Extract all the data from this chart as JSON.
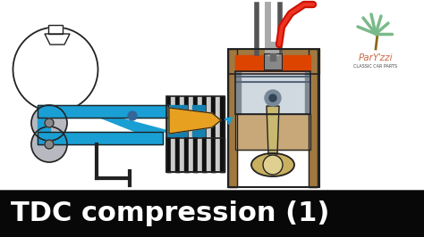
{
  "title": "TDC compression (1)",
  "title_fontsize": 22,
  "bg_color": "#ffffff",
  "title_bg": "#080808",
  "title_fg": "#ffffff",
  "blue": "#1a9fd4",
  "blue_dark": "#1480b0",
  "orange": "#e8a020",
  "brown_head": "#8B5e1a",
  "red_orange": "#cc3300",
  "silver": "#aab4bc",
  "silver_light": "#d0d8e0",
  "rod_color": "#c8b870",
  "dark_gray": "#222222",
  "mid_gray": "#888888",
  "light_gray": "#cccccc",
  "gear_color": "#b8b8c0",
  "logo_text": "ParƳzzi",
  "logo_sub": "CLASSIC CAR PARTS",
  "logo_palm": "#7aba8a",
  "logo_script": "#cc6644"
}
